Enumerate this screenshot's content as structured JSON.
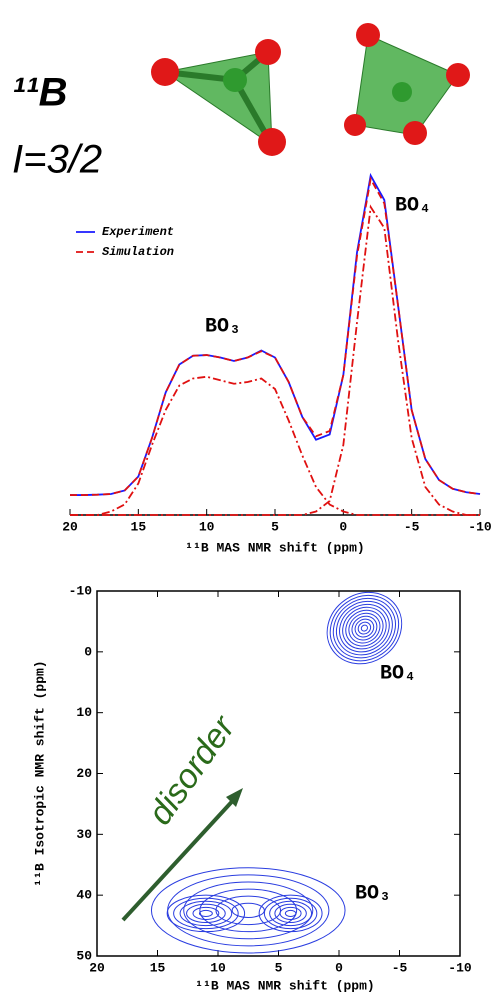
{
  "header": {
    "nucleus": "¹¹B",
    "spin": "I=3/2"
  },
  "chart_data": [
    {
      "type": "line",
      "xlabel": "¹¹B MAS NMR shift (ppm)",
      "x": [
        20,
        19,
        18,
        17,
        16,
        15,
        14,
        13,
        12,
        11,
        10,
        9,
        8,
        7,
        6,
        5,
        4,
        3,
        2,
        1,
        0,
        -1,
        -2,
        -3,
        -4,
        -5,
        -6,
        -7,
        -8,
        -9,
        -10
      ],
      "xlim": [
        20,
        -10
      ],
      "xticks": [
        20,
        15,
        10,
        5,
        0,
        -5,
        -10
      ],
      "ylim": [
        0,
        1
      ],
      "legend": "upper left",
      "series": [
        {
          "name": "Experiment",
          "color": "#1a1aff",
          "style": "solid",
          "values": [
            0.057,
            0.057,
            0.058,
            0.06,
            0.07,
            0.11,
            0.22,
            0.35,
            0.43,
            0.455,
            0.457,
            0.45,
            0.44,
            0.45,
            0.47,
            0.45,
            0.38,
            0.28,
            0.215,
            0.23,
            0.4,
            0.75,
            0.97,
            0.9,
            0.6,
            0.3,
            0.16,
            0.1,
            0.075,
            0.065,
            0.06
          ]
        },
        {
          "name": "Simulation",
          "color": "#e01010",
          "style": "dashed",
          "values": [
            0.057,
            0.057,
            0.058,
            0.06,
            0.07,
            0.11,
            0.22,
            0.35,
            0.43,
            0.455,
            0.457,
            0.45,
            0.44,
            0.45,
            0.468,
            0.45,
            0.38,
            0.28,
            0.225,
            0.24,
            0.4,
            0.74,
            0.96,
            0.89,
            0.6,
            0.3,
            0.16,
            0.1,
            0.075,
            0.065,
            0.06
          ]
        },
        {
          "color": "#e01010",
          "style": "dashdot",
          "values": [
            0,
            0,
            0,
            0.01,
            0.03,
            0.09,
            0.2,
            0.3,
            0.37,
            0.39,
            0.395,
            0.385,
            0.375,
            0.38,
            0.39,
            0.36,
            0.27,
            0.17,
            0.08,
            0.03,
            0.01,
            0,
            0,
            0,
            0,
            0,
            0,
            0,
            0,
            0,
            0
          ]
        },
        {
          "color": "#e01010",
          "style": "dashdot",
          "values": [
            0,
            0,
            0,
            0,
            0,
            0,
            0,
            0,
            0,
            0,
            0,
            0,
            0,
            0,
            0,
            0,
            0,
            0,
            0.01,
            0.04,
            0.2,
            0.55,
            0.88,
            0.82,
            0.5,
            0.22,
            0.08,
            0.03,
            0.01,
            0,
            0
          ]
        }
      ],
      "annotations": [
        "BO₄",
        "BO₃"
      ]
    },
    {
      "type": "contour",
      "xlabel": "¹¹B MAS NMR shift (ppm)",
      "ylabel": "¹¹B Isotropic NMR shift (ppm)",
      "xlim": [
        20,
        -10
      ],
      "xticks": [
        20,
        15,
        10,
        5,
        0,
        -5,
        -10
      ],
      "ylim": [
        -10,
        50
      ],
      "yticks": [
        -10,
        0,
        10,
        20,
        30,
        40,
        50
      ],
      "color": "#2a3de0",
      "contours": [
        {
          "x": -2.1,
          "y": -3.9,
          "rx": 3.2,
          "ry": 5.6,
          "levels": 12
        },
        {
          "x": 7.5,
          "y": 42.5,
          "rx": 8,
          "ry": 7,
          "levels": 6
        },
        {
          "x": 11,
          "y": 43,
          "rx": 3.2,
          "ry": 3,
          "levels": 6
        },
        {
          "x": 4,
          "y": 43,
          "rx": 2.6,
          "ry": 3,
          "levels": 6
        }
      ],
      "annotations": [
        "BO₄",
        "BO₃",
        "disorder"
      ]
    }
  ]
}
